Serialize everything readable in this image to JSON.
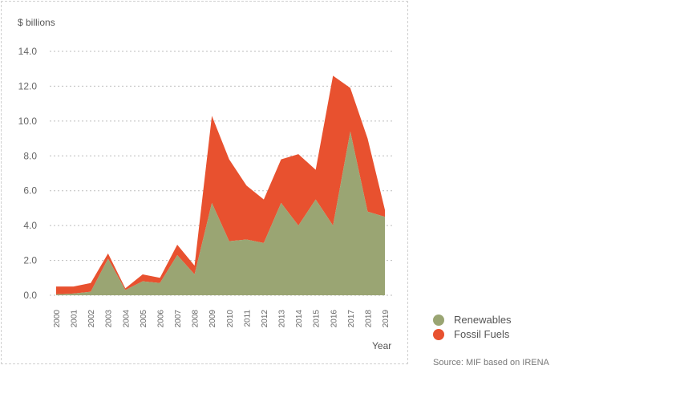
{
  "chart_data": {
    "type": "area",
    "stacked": true,
    "ylabel": "$ billions",
    "xlabel": "Year",
    "ylim": [
      0,
      14
    ],
    "yticks": [
      "0.0",
      "2.0",
      "4.0",
      "6.0",
      "8.0",
      "10.0",
      "12.0",
      "14.0"
    ],
    "categories": [
      "2000",
      "2001",
      "2002",
      "2003",
      "2004",
      "2005",
      "2006",
      "2007",
      "2008",
      "2009",
      "2010",
      "2011",
      "2012",
      "2013",
      "2014",
      "2015",
      "2016",
      "2017",
      "2018",
      "2019"
    ],
    "series": [
      {
        "name": "Renewables",
        "color": "#9aa573",
        "values": [
          0.05,
          0.1,
          0.2,
          2.1,
          0.3,
          0.8,
          0.7,
          2.3,
          1.2,
          5.3,
          3.1,
          3.2,
          3.0,
          5.3,
          4.0,
          5.5,
          4.0,
          9.4,
          4.8,
          4.5
        ]
      },
      {
        "name": "Fossil Fuels",
        "color": "#e8512f",
        "values": [
          0.45,
          0.4,
          0.5,
          0.3,
          0.1,
          0.4,
          0.3,
          0.6,
          0.5,
          5.0,
          4.7,
          3.1,
          2.5,
          2.5,
          4.1,
          1.7,
          8.6,
          2.5,
          4.2,
          0.4
        ]
      }
    ],
    "legend": "right",
    "source": "Source: MIF based on IRENA"
  }
}
